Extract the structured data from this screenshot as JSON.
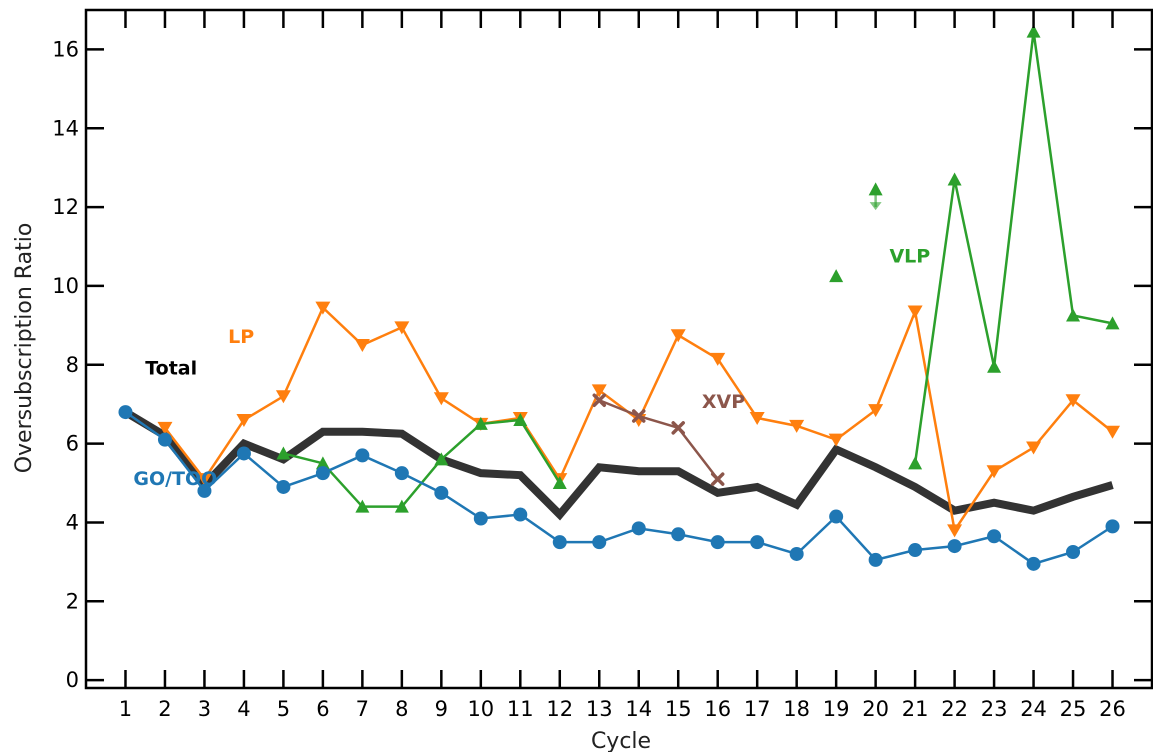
{
  "chart_data": {
    "type": "line",
    "xlabel": "Cycle",
    "ylabel": "Oversubscription Ratio",
    "xlim": [
      0,
      27
    ],
    "ylim": [
      -0.2,
      17
    ],
    "xticks": [
      1,
      2,
      3,
      4,
      5,
      6,
      7,
      8,
      9,
      10,
      11,
      12,
      13,
      14,
      15,
      16,
      17,
      18,
      19,
      20,
      21,
      22,
      23,
      24,
      25,
      26
    ],
    "yticks": [
      0,
      2,
      4,
      6,
      8,
      10,
      12,
      14,
      16
    ],
    "grid": false,
    "series": [
      {
        "name": "Total",
        "color": "#333333",
        "marker": "none",
        "x": [
          1,
          2,
          3,
          4,
          5,
          6,
          7,
          8,
          9,
          10,
          11,
          12,
          13,
          14,
          15,
          16,
          17,
          18,
          19,
          20,
          21,
          22,
          23,
          24,
          25,
          26
        ],
        "y": [
          6.8,
          6.2,
          4.95,
          6.0,
          5.6,
          6.3,
          6.3,
          6.25,
          5.6,
          5.25,
          5.2,
          4.2,
          5.4,
          5.3,
          5.3,
          4.75,
          4.9,
          4.45,
          5.85,
          5.4,
          4.9,
          4.3,
          4.5,
          4.3,
          4.65,
          4.95
        ]
      },
      {
        "name": "GO/TOO",
        "color": "#1f77b4",
        "marker": "circle",
        "x": [
          1,
          2,
          3,
          4,
          5,
          6,
          7,
          8,
          9,
          10,
          11,
          12,
          13,
          14,
          15,
          16,
          17,
          18,
          19,
          20,
          21,
          22,
          23,
          24,
          25,
          26
        ],
        "y": [
          6.8,
          6.1,
          4.8,
          5.75,
          4.9,
          5.25,
          5.7,
          5.25,
          4.75,
          4.1,
          4.2,
          3.5,
          3.5,
          3.85,
          3.7,
          3.5,
          3.5,
          3.2,
          4.15,
          3.05,
          3.3,
          3.4,
          3.65,
          2.95,
          3.25,
          3.9
        ]
      },
      {
        "name": "LP",
        "color": "#ff7f0e",
        "marker": "triangle-down",
        "x": [
          2,
          3,
          4,
          5,
          6,
          7,
          8,
          9,
          10,
          11,
          12,
          13,
          14,
          15,
          16,
          17,
          18,
          19,
          20,
          21,
          22,
          23,
          24,
          25,
          26
        ],
        "y": [
          6.4,
          5.1,
          6.6,
          7.2,
          9.45,
          8.5,
          8.95,
          7.15,
          6.5,
          6.65,
          5.1,
          7.35,
          6.6,
          8.75,
          8.15,
          6.65,
          6.45,
          6.1,
          6.85,
          9.35,
          3.8,
          5.3,
          5.9,
          7.1,
          6.3
        ]
      },
      {
        "name": "VLP",
        "color": "#2ca02c",
        "marker": "triangle-up",
        "segments": [
          {
            "x": [
              5,
              6,
              7,
              8,
              9,
              10,
              11,
              12
            ],
            "y": [
              5.75,
              5.5,
              4.4,
              4.4,
              5.6,
              6.5,
              6.6,
              5.0
            ]
          },
          {
            "x": [
              21,
              22,
              23,
              24,
              25,
              26
            ],
            "y": [
              5.5,
              12.7,
              7.95,
              16.45,
              9.25,
              9.05
            ]
          }
        ],
        "points": [
          {
            "x": 19,
            "y": 10.25
          },
          {
            "x": 20,
            "y": 12.45
          }
        ]
      },
      {
        "name": "XVP",
        "color": "#8c564b",
        "marker": "x",
        "x": [
          13,
          14,
          15,
          16
        ],
        "y": [
          7.1,
          6.7,
          6.4,
          5.1
        ]
      }
    ],
    "labels": [
      {
        "text": "Total",
        "color": "#000000",
        "x": 1.5,
        "y": 7.75
      },
      {
        "text": "LP",
        "color": "#ff7f0e",
        "x": 3.6,
        "y": 8.55
      },
      {
        "text": "GO/TOO",
        "color": "#1f77b4",
        "x": 1.2,
        "y": 4.95
      },
      {
        "text": "XVP",
        "color": "#8c564b",
        "x": 15.6,
        "y": 6.9
      },
      {
        "text": "VLP",
        "color": "#2ca02c",
        "x": 20.35,
        "y": 10.6
      }
    ],
    "annotations": [
      {
        "type": "arrow",
        "color": "#2ca02c",
        "x": 20,
        "y_from": 12.35,
        "y_to": 12.0
      }
    ]
  }
}
